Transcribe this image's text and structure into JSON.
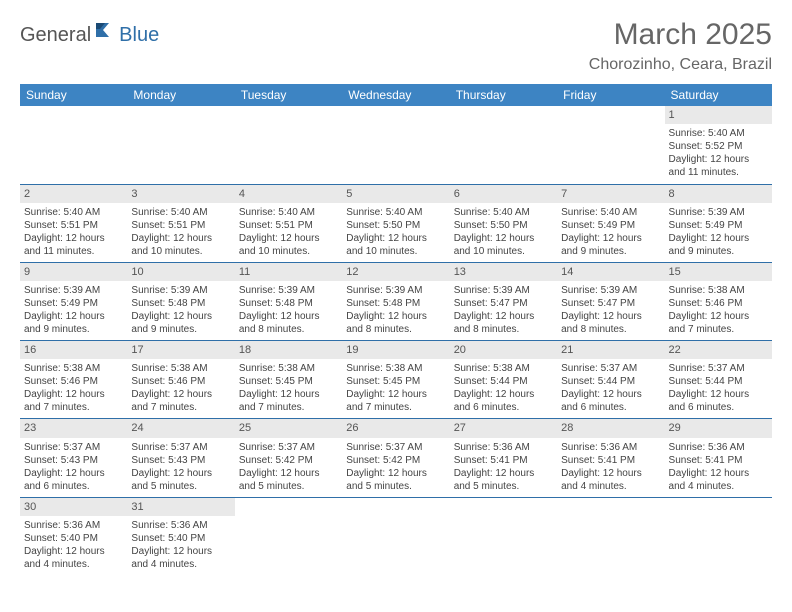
{
  "brand": {
    "part1": "General",
    "part2": "Blue"
  },
  "title": "March 2025",
  "location": "Chorozinho, Ceara, Brazil",
  "colors": {
    "headerBg": "#3d84c3",
    "headerText": "#ffffff",
    "dayNumBg": "#e9e9e9",
    "borderBottom": "#2f6fa8",
    "brandBlue": "#2f6fa8",
    "textGray": "#666666"
  },
  "weekdays": [
    "Sunday",
    "Monday",
    "Tuesday",
    "Wednesday",
    "Thursday",
    "Friday",
    "Saturday"
  ],
  "leadingEmpty": 6,
  "days": [
    {
      "n": 1,
      "sunrise": "5:40 AM",
      "sunset": "5:52 PM",
      "daylight": "12 hours and 11 minutes."
    },
    {
      "n": 2,
      "sunrise": "5:40 AM",
      "sunset": "5:51 PM",
      "daylight": "12 hours and 11 minutes."
    },
    {
      "n": 3,
      "sunrise": "5:40 AM",
      "sunset": "5:51 PM",
      "daylight": "12 hours and 10 minutes."
    },
    {
      "n": 4,
      "sunrise": "5:40 AM",
      "sunset": "5:51 PM",
      "daylight": "12 hours and 10 minutes."
    },
    {
      "n": 5,
      "sunrise": "5:40 AM",
      "sunset": "5:50 PM",
      "daylight": "12 hours and 10 minutes."
    },
    {
      "n": 6,
      "sunrise": "5:40 AM",
      "sunset": "5:50 PM",
      "daylight": "12 hours and 10 minutes."
    },
    {
      "n": 7,
      "sunrise": "5:40 AM",
      "sunset": "5:49 PM",
      "daylight": "12 hours and 9 minutes."
    },
    {
      "n": 8,
      "sunrise": "5:39 AM",
      "sunset": "5:49 PM",
      "daylight": "12 hours and 9 minutes."
    },
    {
      "n": 9,
      "sunrise": "5:39 AM",
      "sunset": "5:49 PM",
      "daylight": "12 hours and 9 minutes."
    },
    {
      "n": 10,
      "sunrise": "5:39 AM",
      "sunset": "5:48 PM",
      "daylight": "12 hours and 9 minutes."
    },
    {
      "n": 11,
      "sunrise": "5:39 AM",
      "sunset": "5:48 PM",
      "daylight": "12 hours and 8 minutes."
    },
    {
      "n": 12,
      "sunrise": "5:39 AM",
      "sunset": "5:48 PM",
      "daylight": "12 hours and 8 minutes."
    },
    {
      "n": 13,
      "sunrise": "5:39 AM",
      "sunset": "5:47 PM",
      "daylight": "12 hours and 8 minutes."
    },
    {
      "n": 14,
      "sunrise": "5:39 AM",
      "sunset": "5:47 PM",
      "daylight": "12 hours and 8 minutes."
    },
    {
      "n": 15,
      "sunrise": "5:38 AM",
      "sunset": "5:46 PM",
      "daylight": "12 hours and 7 minutes."
    },
    {
      "n": 16,
      "sunrise": "5:38 AM",
      "sunset": "5:46 PM",
      "daylight": "12 hours and 7 minutes."
    },
    {
      "n": 17,
      "sunrise": "5:38 AM",
      "sunset": "5:46 PM",
      "daylight": "12 hours and 7 minutes."
    },
    {
      "n": 18,
      "sunrise": "5:38 AM",
      "sunset": "5:45 PM",
      "daylight": "12 hours and 7 minutes."
    },
    {
      "n": 19,
      "sunrise": "5:38 AM",
      "sunset": "5:45 PM",
      "daylight": "12 hours and 7 minutes."
    },
    {
      "n": 20,
      "sunrise": "5:38 AM",
      "sunset": "5:44 PM",
      "daylight": "12 hours and 6 minutes."
    },
    {
      "n": 21,
      "sunrise": "5:37 AM",
      "sunset": "5:44 PM",
      "daylight": "12 hours and 6 minutes."
    },
    {
      "n": 22,
      "sunrise": "5:37 AM",
      "sunset": "5:44 PM",
      "daylight": "12 hours and 6 minutes."
    },
    {
      "n": 23,
      "sunrise": "5:37 AM",
      "sunset": "5:43 PM",
      "daylight": "12 hours and 6 minutes."
    },
    {
      "n": 24,
      "sunrise": "5:37 AM",
      "sunset": "5:43 PM",
      "daylight": "12 hours and 5 minutes."
    },
    {
      "n": 25,
      "sunrise": "5:37 AM",
      "sunset": "5:42 PM",
      "daylight": "12 hours and 5 minutes."
    },
    {
      "n": 26,
      "sunrise": "5:37 AM",
      "sunset": "5:42 PM",
      "daylight": "12 hours and 5 minutes."
    },
    {
      "n": 27,
      "sunrise": "5:36 AM",
      "sunset": "5:41 PM",
      "daylight": "12 hours and 5 minutes."
    },
    {
      "n": 28,
      "sunrise": "5:36 AM",
      "sunset": "5:41 PM",
      "daylight": "12 hours and 4 minutes."
    },
    {
      "n": 29,
      "sunrise": "5:36 AM",
      "sunset": "5:41 PM",
      "daylight": "12 hours and 4 minutes."
    },
    {
      "n": 30,
      "sunrise": "5:36 AM",
      "sunset": "5:40 PM",
      "daylight": "12 hours and 4 minutes."
    },
    {
      "n": 31,
      "sunrise": "5:36 AM",
      "sunset": "5:40 PM",
      "daylight": "12 hours and 4 minutes."
    }
  ],
  "labels": {
    "sunrise": "Sunrise:",
    "sunset": "Sunset:",
    "daylight": "Daylight:"
  }
}
